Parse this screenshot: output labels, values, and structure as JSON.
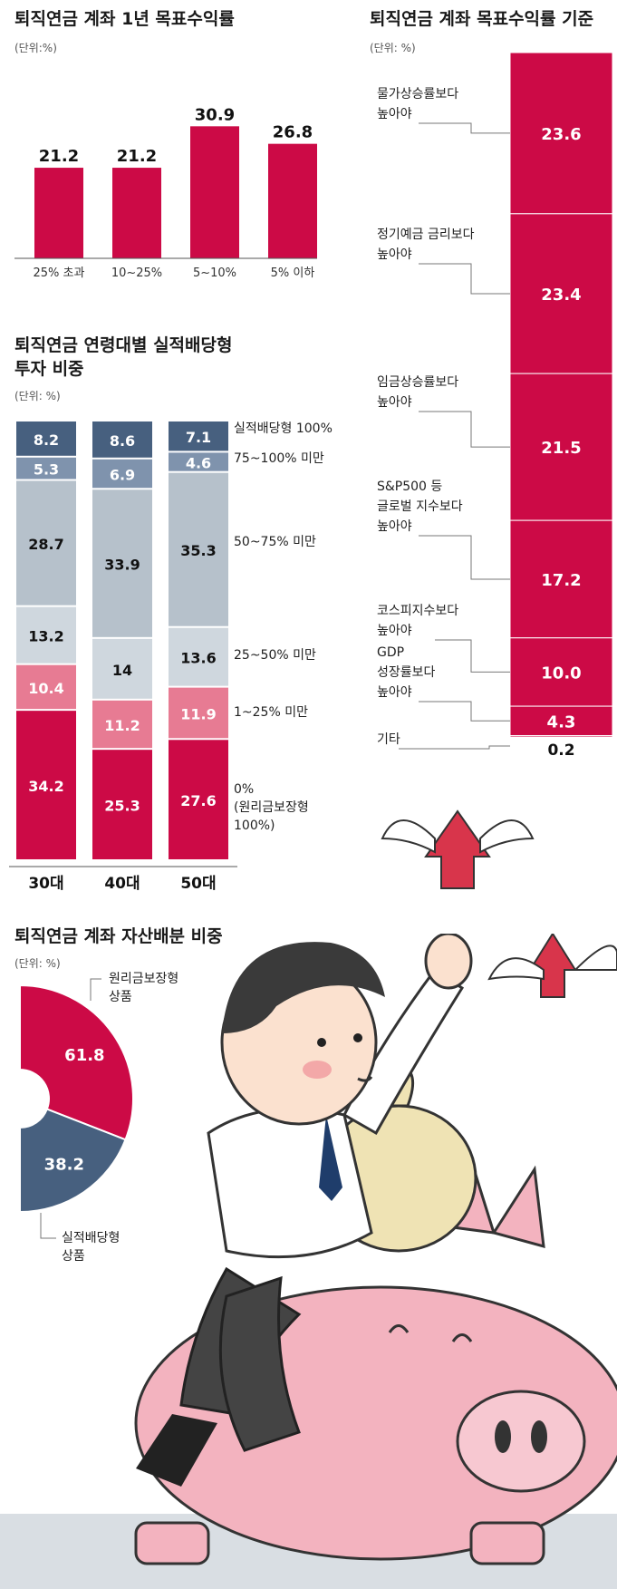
{
  "chart_data": [
    {
      "id": "c1",
      "type": "bar",
      "title": "퇴직연금 계좌 1년 목표수익률",
      "unit": "(단위:%)",
      "categories": [
        "25% 초과",
        "10~25%",
        "5~10%",
        "5% 이하"
      ],
      "values": [
        21.2,
        21.2,
        30.9,
        26.8
      ],
      "ylim": [
        0,
        35
      ],
      "color": "#cc0a46"
    },
    {
      "id": "c2",
      "type": "bar",
      "stacked": true,
      "title": "퇴직연금 계좌 목표수익률 기준",
      "unit": "(단위: %)",
      "segments": [
        {
          "label": "물가상승률보다\n높아야",
          "value": 23.6
        },
        {
          "label": "정기예금 금리보다\n높아야",
          "value": 23.4
        },
        {
          "label": "임금상승률보다\n높아야",
          "value": 21.5
        },
        {
          "label": "S&P500 등\n글로벌 지수보다\n높아야",
          "value": 17.2
        },
        {
          "label": "코스피지수보다\n높아야",
          "value": 10.0
        },
        {
          "label": "GDP\n성장률보다\n높아야",
          "value": 4.3
        },
        {
          "label": "기타",
          "value": 0.2
        }
      ],
      "value_labels": [
        "23.6",
        "23.4",
        "21.5",
        "17.2",
        "10.0",
        "4.3",
        "0.2"
      ],
      "color": "#cc0a46"
    },
    {
      "id": "c3",
      "type": "bar",
      "stacked": true,
      "title": "퇴직연금 연령대별 실적배당형\n투자 비중",
      "unit": "(단위: %)",
      "categories": [
        "30대",
        "40대",
        "50대"
      ],
      "series": [
        {
          "name": "실적배당형 100%",
          "values": [
            8.2,
            8.6,
            7.1
          ],
          "labels": [
            "8.2",
            "8.6",
            "7.1"
          ],
          "color": "#47607f",
          "text": "#ffffff"
        },
        {
          "name": "75~100% 미만",
          "values": [
            5.3,
            6.9,
            4.6
          ],
          "labels": [
            "5.3",
            "6.9",
            "4.6"
          ],
          "color": "#7f93ad",
          "text": "#ffffff"
        },
        {
          "name": "50~75% 미만",
          "values": [
            28.7,
            33.9,
            35.3
          ],
          "labels": [
            "28.7",
            "33.9",
            "35.3"
          ],
          "color": "#b6c1cb",
          "text": "#111111"
        },
        {
          "name": "25~50% 미만",
          "values": [
            13.2,
            14,
            13.6
          ],
          "labels": [
            "13.2",
            "14",
            "13.6"
          ],
          "color": "#cfd7de",
          "text": "#111111"
        },
        {
          "name": "1~25% 미만",
          "values": [
            10.4,
            11.2,
            11.9
          ],
          "labels": [
            "10.4",
            "11.2",
            "11.9"
          ],
          "color": "#e77b93",
          "text": "#ffffff"
        },
        {
          "name": "0%\n(원리금보장형\n100%)",
          "values": [
            34.2,
            25.3,
            27.6
          ],
          "labels": [
            "34.2",
            "25.3",
            "27.6"
          ],
          "color": "#cc0a46",
          "text": "#ffffff"
        }
      ]
    },
    {
      "id": "c4",
      "type": "pie",
      "donut": true,
      "title": "퇴직연금 계좌 자산배분 비중",
      "unit": "(단위: %)",
      "slices": [
        {
          "label": "원리금보장형\n상품",
          "value": 61.8,
          "text": "61.8",
          "color": "#cc0a46"
        },
        {
          "label": "실적배당형\n상품",
          "value": 38.2,
          "text": "38.2",
          "color": "#47607f"
        }
      ]
    }
  ]
}
